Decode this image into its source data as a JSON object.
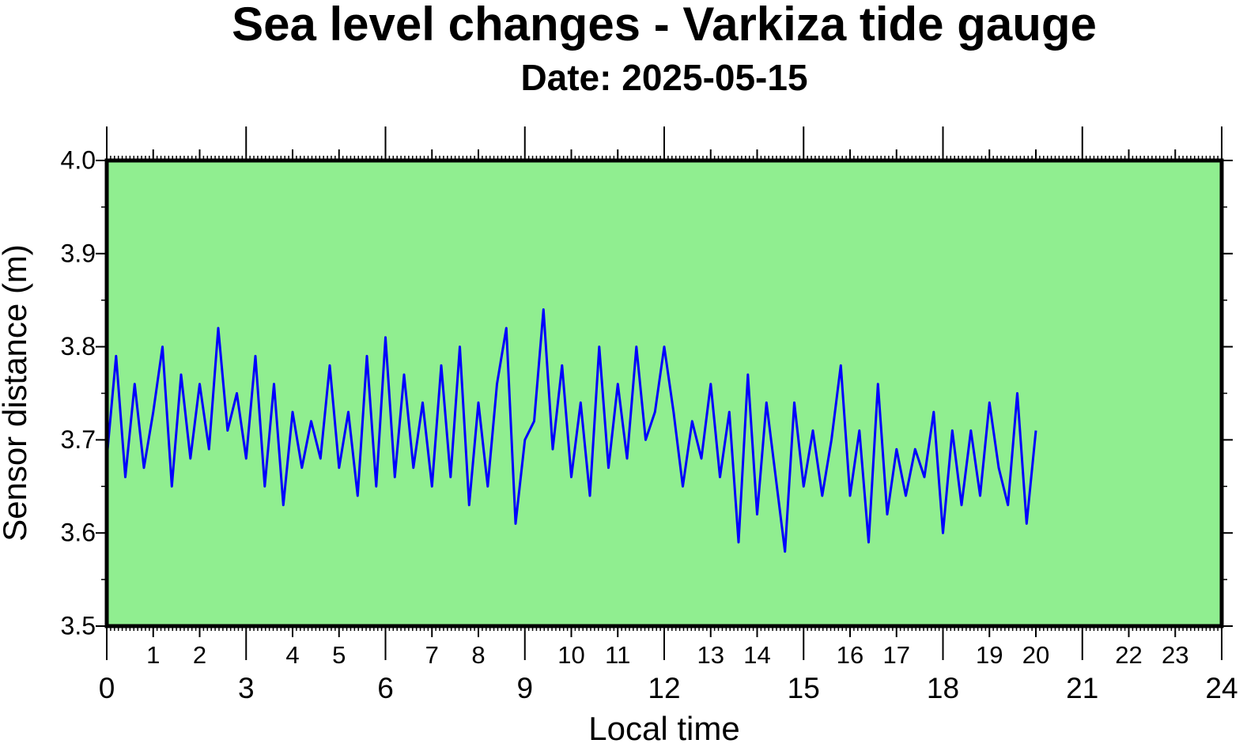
{
  "chart_data": {
    "type": "line",
    "title": "Sea level changes - Varkiza tide gauge",
    "subtitle": "Date: 2025-05-15",
    "xlabel": "Local time",
    "ylabel": "Sensor distance (m)",
    "xlim": [
      0,
      24
    ],
    "xticks": [
      0,
      3,
      6,
      9,
      12,
      15,
      18,
      21,
      24
    ],
    "xticks_hours": [
      1,
      2,
      4,
      5,
      7,
      8,
      10,
      11,
      13,
      14,
      16,
      17,
      19,
      20,
      22,
      23
    ],
    "ylim": [
      3.5,
      4.0
    ],
    "yticks": [
      3.5,
      3.6,
      3.7,
      3.8,
      3.9,
      {
        "value": 4.0,
        "label": "4.0"
      }
    ],
    "background": "#90ee90",
    "color": "#0000ff",
    "x": [
      0,
      0.2,
      0.4,
      0.6,
      0.8,
      1,
      1.2,
      1.4,
      1.6,
      1.8,
      2,
      2.2,
      2.4,
      2.6,
      2.8,
      3,
      3.2,
      3.4,
      3.6,
      3.8,
      4,
      4.2,
      4.4,
      4.6,
      4.8,
      5,
      5.2,
      5.4,
      5.6,
      5.8,
      6,
      6.2,
      6.4,
      6.6,
      6.8,
      7,
      7.2,
      7.4,
      7.6,
      7.8,
      8,
      8.2,
      8.4,
      8.6,
      8.8,
      9,
      9.2,
      9.4,
      9.6,
      9.8,
      10,
      10.2,
      10.4,
      10.6,
      10.8,
      11,
      11.2,
      11.4,
      11.6,
      11.8,
      12,
      12.2,
      12.4,
      12.6,
      12.8,
      13,
      13.2,
      13.4,
      13.6,
      13.8,
      14,
      14.2,
      14.4,
      14.6,
      14.8,
      15,
      15.2,
      15.4,
      15.6,
      15.8,
      16,
      16.2,
      16.4,
      16.6,
      16.8,
      17,
      17.2,
      17.4,
      17.6,
      17.8,
      18,
      18.2,
      18.4,
      18.6,
      18.8,
      19,
      19.2,
      19.4,
      19.6,
      19.8,
      20
    ],
    "values": [
      3.68,
      3.79,
      3.66,
      3.76,
      3.67,
      3.73,
      3.8,
      3.65,
      3.77,
      3.68,
      3.76,
      3.69,
      3.82,
      3.71,
      3.75,
      3.68,
      3.79,
      3.65,
      3.76,
      3.63,
      3.73,
      3.67,
      3.72,
      3.68,
      3.78,
      3.67,
      3.73,
      3.64,
      3.79,
      3.65,
      3.81,
      3.66,
      3.77,
      3.67,
      3.74,
      3.65,
      3.78,
      3.66,
      3.8,
      3.63,
      3.74,
      3.65,
      3.76,
      3.82,
      3.61,
      3.7,
      3.72,
      3.84,
      3.69,
      3.78,
      3.66,
      3.74,
      3.64,
      3.8,
      3.67,
      3.76,
      3.68,
      3.8,
      3.7,
      3.73,
      3.8,
      3.73,
      3.65,
      3.72,
      3.68,
      3.76,
      3.66,
      3.73,
      3.59,
      3.77,
      3.62,
      3.74,
      3.66,
      3.58,
      3.74,
      3.65,
      3.71,
      3.64,
      3.7,
      3.78,
      3.64,
      3.71,
      3.59,
      3.76,
      3.62,
      3.69,
      3.64,
      3.69,
      3.66,
      3.73,
      3.6,
      3.71,
      3.63,
      3.71,
      3.64,
      3.74,
      3.67,
      3.63,
      3.75,
      3.61,
      3.71
    ]
  }
}
